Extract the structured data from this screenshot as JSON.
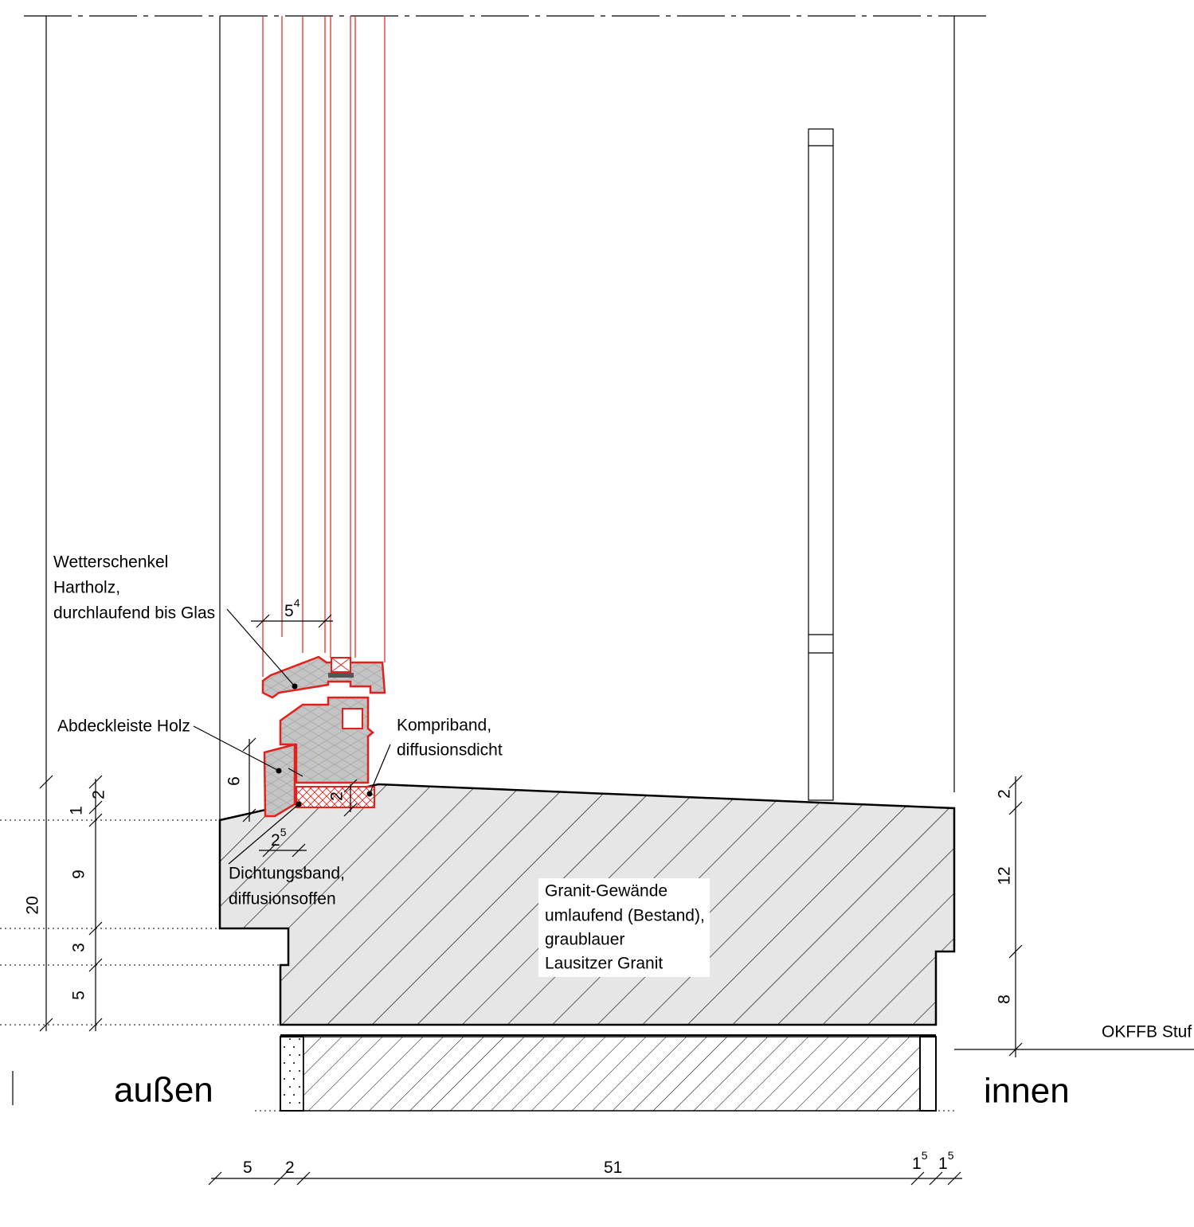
{
  "labels": {
    "outside": "außen",
    "inside": "innen",
    "floor_level": "OKFFB Stuf"
  },
  "notes": {
    "weather_bar": [
      "Wetterschenkel",
      "Hartholz,",
      "durchlaufend bis Glas"
    ],
    "cover_strip": [
      "Abdeckleiste Holz"
    ],
    "compriband": [
      "Kompriband,",
      "diffusionsdicht"
    ],
    "sealing_tape": [
      "Dichtungsband,",
      "diffusionsoffen"
    ],
    "granite": [
      "Granit-Gewände",
      "umlaufend (Bestand),",
      "graublauer",
      "Lausitzer Granit"
    ]
  },
  "dimensions": {
    "left": [
      "1",
      "2",
      "9",
      "20",
      "3",
      "5"
    ],
    "right": [
      "2",
      "12",
      "8"
    ],
    "window": {
      "glass": {
        "base": "5",
        "sup": "4"
      },
      "cover_height": "6",
      "band": "2",
      "gap": {
        "base": "2",
        "sup": "5"
      }
    },
    "bottom": [
      {
        "base": "5"
      },
      {
        "base": "2"
      },
      {
        "base": "51"
      },
      {
        "base": "1",
        "sup": "5"
      },
      {
        "base": "1",
        "sup": "5"
      }
    ]
  }
}
